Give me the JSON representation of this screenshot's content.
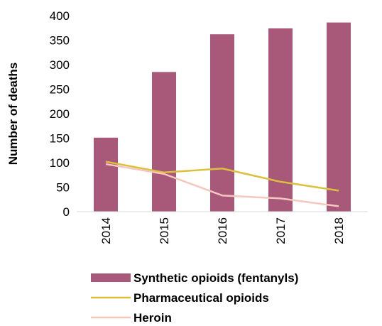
{
  "chart_data": {
    "type": "bar",
    "title": "",
    "xlabel": "",
    "ylabel": "Number of deaths",
    "categories": [
      "2014",
      "2015",
      "2016",
      "2017",
      "2018"
    ],
    "ylim": [
      0,
      400
    ],
    "yticks": [
      0,
      50,
      100,
      150,
      200,
      250,
      300,
      350,
      400
    ],
    "grid": false,
    "legend_position": "bottom",
    "series": [
      {
        "name": "Synthetic opioids (fentanyls)",
        "kind": "bar",
        "color": "#A85878",
        "values": [
          151,
          285,
          362,
          374,
          386
        ]
      },
      {
        "name": "Pharmaceutical opioids",
        "kind": "line",
        "color": "#DDBF3E",
        "values": [
          102,
          80,
          88,
          61,
          43
        ]
      },
      {
        "name": "Heroin",
        "kind": "line",
        "color": "#F6C7BE",
        "values": [
          97,
          77,
          33,
          27,
          11
        ]
      }
    ]
  }
}
